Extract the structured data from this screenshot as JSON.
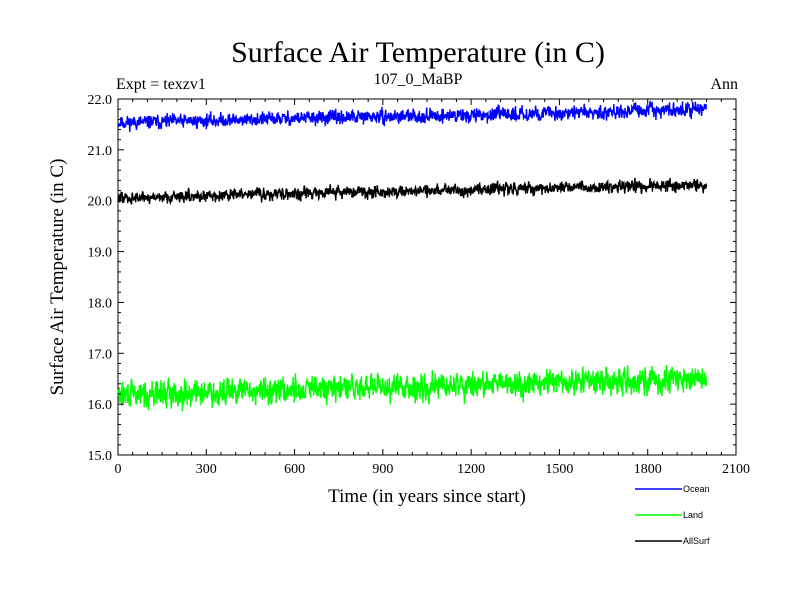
{
  "chart_data": {
    "type": "line",
    "title": "Surface Air Temperature (in C)",
    "subtitle": "107_0_MaBP",
    "left_label": "Expt = texzv1",
    "right_label": "Ann",
    "xlabel": "Time (in years since start)",
    "ylabel": "Surface Air Temperature (in C)",
    "xlim": [
      0,
      2100
    ],
    "ylim": [
      15.0,
      22.0
    ],
    "xticks": [
      0,
      300,
      600,
      900,
      1200,
      1500,
      1800,
      2100
    ],
    "yticks": [
      15.0,
      16.0,
      17.0,
      18.0,
      19.0,
      20.0,
      21.0,
      22.0
    ],
    "xtick_labels": [
      "0",
      "300",
      "600",
      "900",
      "1200",
      "1500",
      "1800",
      "2100"
    ],
    "ytick_labels": [
      "15.0",
      "16.0",
      "17.0",
      "18.0",
      "19.0",
      "20.0",
      "21.0",
      "22.0"
    ],
    "x_range": [
      0,
      2000
    ],
    "series": [
      {
        "name": "Ocean",
        "color": "#0000ff",
        "trend": [
          [
            0,
            21.53
          ],
          [
            600,
            21.62
          ],
          [
            1200,
            21.68
          ],
          [
            2000,
            21.8
          ]
        ],
        "noise": 0.09,
        "seed": 11
      },
      {
        "name": "Land",
        "color": "#00ff00",
        "trend": [
          [
            0,
            16.18
          ],
          [
            600,
            16.28
          ],
          [
            1200,
            16.38
          ],
          [
            2000,
            16.48
          ]
        ],
        "noise": 0.17,
        "seed": 29
      },
      {
        "name": "AllSurf",
        "color": "#000000",
        "trend": [
          [
            0,
            20.05
          ],
          [
            600,
            20.15
          ],
          [
            1200,
            20.22
          ],
          [
            2000,
            20.3
          ]
        ],
        "noise": 0.08,
        "seed": 47
      }
    ]
  }
}
